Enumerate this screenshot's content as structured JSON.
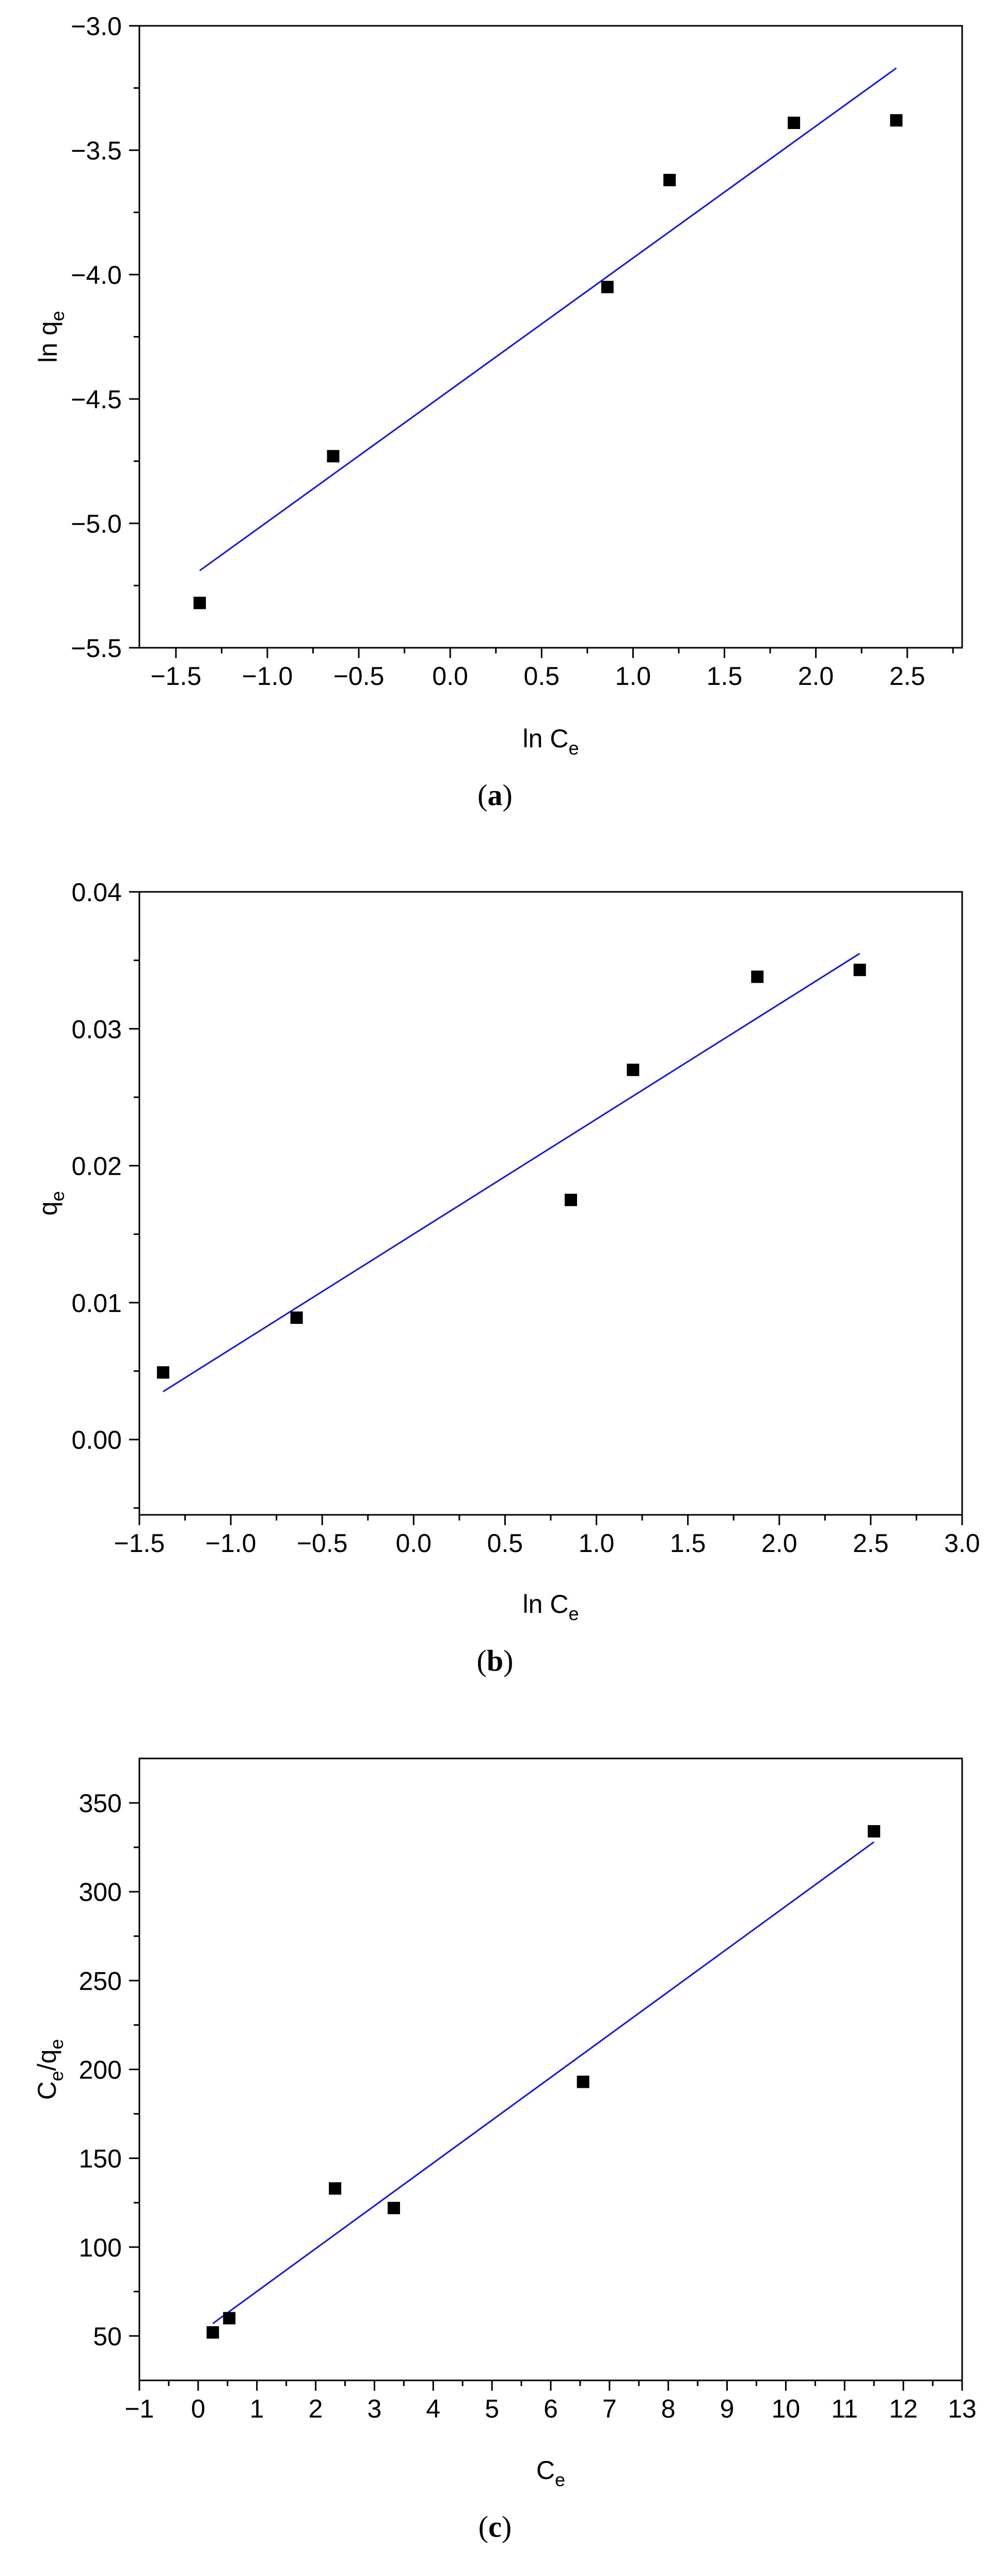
{
  "chart_data": [
    {
      "type": "scatter",
      "panel_label": "a",
      "xlabel": "ln C",
      "xlabel_sub": "e",
      "ylabel": "ln q",
      "ylabel_sub": "e",
      "xlim": [
        -1.7,
        2.8
      ],
      "ylim": [
        -5.5,
        -3.0
      ],
      "xticks": [
        -1.5,
        -1.0,
        -0.5,
        0.0,
        0.5,
        1.0,
        1.5,
        2.0,
        2.5
      ],
      "xtick_labels": [
        "−1.5",
        "−1.0",
        "−0.5",
        "0.0",
        "0.5",
        "1.0",
        "1.5",
        "2.0",
        "2.5"
      ],
      "yticks": [
        -5.5,
        -5.0,
        -4.5,
        -4.0,
        -3.5,
        -3.0
      ],
      "ytick_labels": [
        "−5.5",
        "−5.0",
        "−4.5",
        "−4.0",
        "−3.5",
        "−3.0"
      ],
      "points": {
        "x": [
          -1.37,
          -0.64,
          0.86,
          1.2,
          1.88,
          2.44
        ],
        "y": [
          -5.32,
          -4.73,
          -4.05,
          -3.62,
          -3.39,
          -3.38
        ]
      },
      "fit_line": {
        "x": [
          -1.37,
          2.44
        ],
        "y": [
          -5.19,
          -3.17
        ],
        "color": "#1515d6"
      },
      "grid": false,
      "legend": "none"
    },
    {
      "type": "scatter",
      "panel_label": "b",
      "xlabel": "ln C",
      "xlabel_sub": "e",
      "ylabel": "q",
      "ylabel_sub": "e",
      "xlim": [
        -1.5,
        3.0
      ],
      "ylim": [
        -0.0055,
        0.04
      ],
      "xticks": [
        -1.5,
        -1.0,
        -0.5,
        0.0,
        0.5,
        1.0,
        1.5,
        2.0,
        2.5,
        3.0
      ],
      "xtick_labels": [
        "−1.5",
        "−1.0",
        "−0.5",
        "0.0",
        "0.5",
        "1.0",
        "1.5",
        "2.0",
        "2.5",
        "3.0"
      ],
      "yticks": [
        0.0,
        0.01,
        0.02,
        0.03,
        0.04
      ],
      "ytick_labels": [
        "0.00",
        "0.01",
        "0.02",
        "0.03",
        "0.04"
      ],
      "points": {
        "x": [
          -1.37,
          -0.64,
          0.86,
          1.2,
          1.88,
          2.44
        ],
        "y": [
          0.0049,
          0.0089,
          0.0175,
          0.027,
          0.0338,
          0.0343
        ]
      },
      "fit_line": {
        "x": [
          -1.37,
          2.44
        ],
        "y": [
          0.0035,
          0.0355
        ],
        "color": "#1515d6"
      },
      "grid": false,
      "legend": "none"
    },
    {
      "type": "scatter",
      "panel_label": "c",
      "xlabel": "C",
      "xlabel_sub": "e",
      "ylabel": "C",
      "ylabel_sub": "e",
      "ylabel_tail": "/q",
      "ylabel_tail_sub": "e",
      "xlim": [
        -1,
        13
      ],
      "ylim": [
        25,
        375
      ],
      "xticks": [
        -1,
        0,
        1,
        2,
        3,
        4,
        5,
        6,
        7,
        8,
        9,
        10,
        11,
        12,
        13
      ],
      "xtick_labels": [
        "−1",
        "0",
        "1",
        "2",
        "3",
        "4",
        "5",
        "6",
        "7",
        "8",
        "9",
        "10",
        "11",
        "12",
        "13"
      ],
      "yticks": [
        50,
        100,
        150,
        200,
        250,
        300,
        350
      ],
      "ytick_labels": [
        "50",
        "100",
        "150",
        "200",
        "250",
        "300",
        "350"
      ],
      "points": {
        "x": [
          0.25,
          0.53,
          2.33,
          3.33,
          6.55,
          11.5
        ],
        "y": [
          52,
          60,
          133,
          122,
          193,
          334
        ]
      },
      "fit_line": {
        "x": [
          0.25,
          11.5
        ],
        "y": [
          57,
          328
        ],
        "color": "#1515d6"
      },
      "grid": false,
      "legend": "none"
    }
  ]
}
